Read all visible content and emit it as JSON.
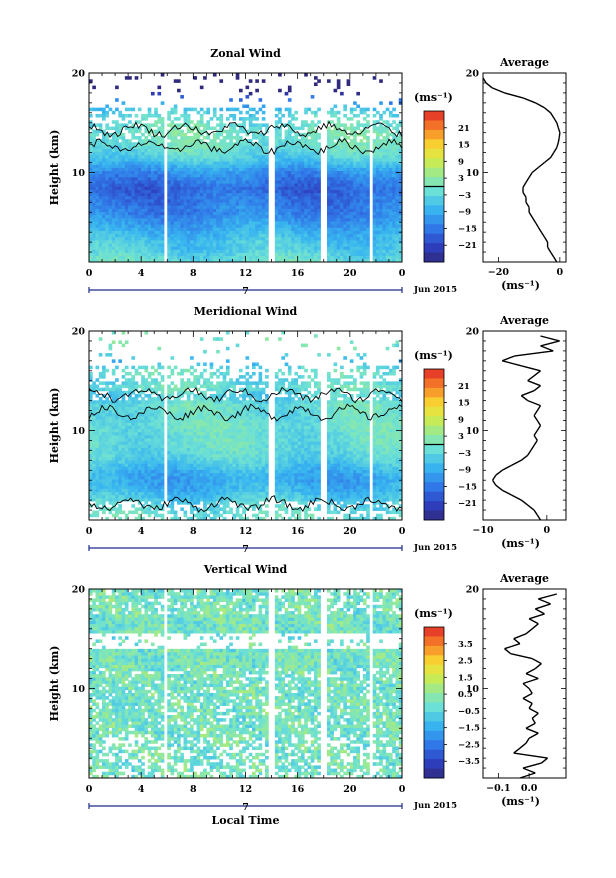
{
  "chart_data": [
    {
      "type": "heatmap",
      "title": "Zonal Wind",
      "ylabel": "Height (km)",
      "ylim": [
        1,
        20
      ],
      "x_ticks": [
        "0",
        "4",
        "8",
        "12",
        "16",
        "20",
        "0"
      ],
      "y_ticks": [
        "10",
        "20"
      ],
      "date_tick": "7",
      "date_label": "Jun 2015",
      "colorbar": {
        "unit": "(ms⁻¹)",
        "labels": [
          "21",
          "15",
          "9",
          "3",
          "−3",
          "−9",
          "−15",
          "−21"
        ],
        "range": [
          -24,
          24
        ],
        "zero_contour": true
      },
      "data_gaps_hours": [
        [
          5.7,
          6.1
        ],
        [
          13.8,
          14.3
        ],
        [
          17.8,
          18.3
        ],
        [
          21.4,
          21.7
        ]
      ],
      "field_summary": "Westward (negative) zonal winds of about -15 to -21 ms⁻¹ between roughly 2 and 12 km; weak winds near 12-14 km; sparse data above 15 km.",
      "average_profile": {
        "title": "Average",
        "xlabel": "(ms⁻¹)",
        "x_ticks": [
          "−20",
          "0"
        ],
        "xlim": [
          -25,
          2
        ],
        "y_ticks": [
          "10",
          "20"
        ],
        "ylim": [
          1,
          20
        ],
        "height_km": [
          1.0,
          1.5,
          2.0,
          2.5,
          3.0,
          3.5,
          4.0,
          4.5,
          5.0,
          5.5,
          6.0,
          6.5,
          7.0,
          7.5,
          8.0,
          8.5,
          9.0,
          9.5,
          10.0,
          10.5,
          11.0,
          11.5,
          12.0,
          12.5,
          13.0,
          13.5,
          14.0,
          14.5,
          15.0,
          15.5,
          16.0,
          16.5,
          17.0,
          17.5,
          18.0,
          18.5,
          19.0,
          19.5
        ],
        "wind_ms": [
          -1,
          -2,
          -3,
          -4,
          -4,
          -5,
          -6,
          -7,
          -8,
          -9,
          -10,
          -10,
          -11,
          -11,
          -12,
          -12,
          -11,
          -10,
          -9,
          -7,
          -5,
          -3,
          -2,
          -1,
          -0.5,
          -0.2,
          0,
          -0.5,
          -1,
          -2,
          -3,
          -5,
          -8,
          -12,
          -18,
          -22,
          -24,
          -25
        ]
      }
    },
    {
      "type": "heatmap",
      "title": "Meridional Wind",
      "ylabel": "Height (km)",
      "ylim": [
        1,
        20
      ],
      "x_ticks": [
        "0",
        "4",
        "8",
        "12",
        "16",
        "20",
        "0"
      ],
      "y_ticks": [
        "10",
        "20"
      ],
      "date_tick": "7",
      "date_label": "Jun 2015",
      "colorbar": {
        "unit": "(ms⁻¹)",
        "labels": [
          "21",
          "15",
          "9",
          "3",
          "−3",
          "−9",
          "−15",
          "−21"
        ],
        "range": [
          -24,
          24
        ],
        "zero_contour": true
      },
      "data_gaps_hours": [
        [
          5.7,
          6.1
        ],
        [
          13.8,
          14.3
        ],
        [
          17.8,
          18.3
        ],
        [
          21.4,
          21.7
        ]
      ],
      "field_summary": "Southward (negative) meridional winds up to about -10 ms⁻¹ between 5 and 9 km; near zero below 3 km and near 11-13 km.",
      "average_profile": {
        "title": "Average",
        "xlabel": "(ms⁻¹)",
        "x_ticks": [
          "−10",
          "0"
        ],
        "xlim": [
          -10,
          3
        ],
        "y_ticks": [
          "10",
          "20"
        ],
        "ylim": [
          1,
          20
        ],
        "height_km": [
          1.0,
          1.5,
          2.0,
          2.5,
          3.0,
          3.5,
          4.0,
          4.5,
          5.0,
          5.5,
          6.0,
          6.5,
          7.0,
          7.5,
          8.0,
          8.5,
          9.0,
          9.5,
          10.0,
          10.5,
          11.0,
          11.5,
          12.0,
          12.5,
          13.0,
          13.5,
          14.0,
          14.5,
          15.0,
          15.5,
          16.0,
          16.5,
          17.0,
          17.5,
          18.0,
          18.5,
          19.0,
          19.5
        ],
        "wind_ms": [
          -1,
          -1.5,
          -2,
          -3,
          -4,
          -5.5,
          -7,
          -8,
          -8.5,
          -8,
          -7,
          -5.5,
          -4,
          -3,
          -2.5,
          -2,
          -1.5,
          -2,
          -1.5,
          -1,
          -1.5,
          -2,
          -1.5,
          -1,
          -3,
          -4,
          -2,
          -1,
          -3,
          -2,
          -1,
          -4,
          -7,
          -5,
          1,
          -1,
          2,
          -1
        ]
      }
    },
    {
      "type": "heatmap",
      "title": "Vertical Wind",
      "xlabel": "Local Time",
      "ylabel": "Height (km)",
      "ylim": [
        1,
        20
      ],
      "x_ticks": [
        "0",
        "4",
        "8",
        "12",
        "16",
        "20",
        "0"
      ],
      "y_ticks": [
        "10",
        "20"
      ],
      "date_tick": "7",
      "date_label": "Jun 2015",
      "colorbar": {
        "unit": "(ms⁻¹)",
        "labels": [
          "3.5",
          "2.5",
          "1.5",
          "0.5",
          "−0.5",
          "−1.5",
          "−2.5",
          "−3.5"
        ],
        "range": [
          -4,
          4
        ],
        "zero_contour": false
      },
      "data_gaps_hours": [
        [
          5.7,
          6.1
        ],
        [
          13.8,
          14.3
        ],
        [
          17.8,
          18.3
        ],
        [
          21.4,
          21.7
        ]
      ],
      "field_summary": "Vertical winds mostly within ±0.5 ms⁻¹, with many missing gates near 14-15 km and below 5 km.",
      "average_profile": {
        "title": "Average",
        "xlabel": "(ms⁻¹)",
        "x_ticks": [
          "−0.1",
          "0.0"
        ],
        "xlim": [
          -0.15,
          0.12
        ],
        "y_ticks": [
          "10",
          "20"
        ],
        "ylim": [
          1,
          20
        ],
        "height_km": [
          1.0,
          1.5,
          2.0,
          2.5,
          3.0,
          3.5,
          4.0,
          4.5,
          5.0,
          5.5,
          6.0,
          6.5,
          7.0,
          7.5,
          8.0,
          8.5,
          9.0,
          9.5,
          10.0,
          10.5,
          11.0,
          11.5,
          12.0,
          12.5,
          13.0,
          13.5,
          14.0,
          14.5,
          15.0,
          15.5,
          16.0,
          16.5,
          17.0,
          17.5,
          18.0,
          18.5,
          19.0,
          19.5
        ],
        "wind_ms": [
          -0.03,
          0.02,
          -0.02,
          0.04,
          0.06,
          -0.05,
          -0.03,
          -0.01,
          0.0,
          0.03,
          -0.01,
          0.02,
          0.01,
          0.03,
          0.0,
          0.01,
          -0.02,
          0.01,
          0.0,
          -0.02,
          0.03,
          -0.01,
          0.02,
          0.04,
          0.01,
          -0.06,
          -0.08,
          -0.03,
          -0.05,
          -0.01,
          0.01,
          0.03,
          0.0,
          0.05,
          0.02,
          0.07,
          0.03,
          0.09
        ]
      }
    }
  ]
}
